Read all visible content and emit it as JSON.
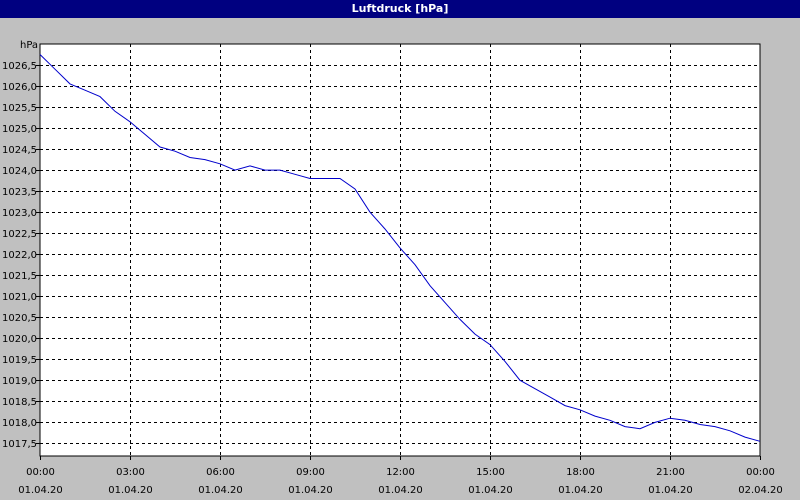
{
  "window": {
    "title": "Luftdruck [hPa]"
  },
  "chart_data": {
    "type": "line",
    "title": "Luftdruck [hPa]",
    "ylabel": "hPa",
    "xlabel": "",
    "ylim": [
      1017.2,
      1027.0
    ],
    "xlim": [
      0,
      24
    ],
    "grid": true,
    "legend": "none",
    "line_color": "#0000cc",
    "ytick_values": [
      1017.5,
      1018.0,
      1018.5,
      1019.0,
      1019.5,
      1020.0,
      1020.5,
      1021.0,
      1021.5,
      1022.0,
      1022.5,
      1023.0,
      1023.5,
      1024.0,
      1024.5,
      1025.0,
      1025.5,
      1026.0,
      1026.5
    ],
    "ytick_labels": [
      "1017,5",
      "1018,0",
      "1018,5",
      "1019,0",
      "1019,5",
      "1020,0",
      "1020,5",
      "1021,0",
      "1021,5",
      "1022,0",
      "1022,5",
      "1023,0",
      "1023,5",
      "1024,0",
      "1024,5",
      "1025,0",
      "1025,5",
      "1026,0",
      "1026,5"
    ],
    "xticks": [
      {
        "hour": 0,
        "time": "00:00",
        "date": "01.04.20"
      },
      {
        "hour": 3,
        "time": "03:00",
        "date": "01.04.20"
      },
      {
        "hour": 6,
        "time": "06:00",
        "date": "01.04.20"
      },
      {
        "hour": 9,
        "time": "09:00",
        "date": "01.04.20"
      },
      {
        "hour": 12,
        "time": "12:00",
        "date": "01.04.20"
      },
      {
        "hour": 15,
        "time": "15:00",
        "date": "01.04.20"
      },
      {
        "hour": 18,
        "time": "18:00",
        "date": "01.04.20"
      },
      {
        "hour": 21,
        "time": "21:00",
        "date": "01.04.20"
      },
      {
        "hour": 24,
        "time": "00:00",
        "date": "02.04.20"
      }
    ],
    "series": [
      {
        "x": [
          0,
          0.5,
          1.0,
          1.5,
          2.0,
          2.5,
          3.0,
          3.5,
          4.0,
          4.5,
          5.0,
          5.5,
          6.0,
          6.5,
          7.0,
          7.5,
          8.0,
          8.5,
          9.0,
          9.5,
          10.0,
          10.5,
          11.0,
          11.5,
          12.0,
          12.5,
          13.0,
          13.5,
          14.0,
          14.5,
          15.0,
          15.5,
          16.0,
          16.5,
          17.0,
          17.5,
          18.0,
          18.5,
          19.0,
          19.5,
          20.0,
          20.5,
          21.0,
          21.5,
          22.0,
          22.5,
          23.0,
          23.5,
          24.0
        ],
        "values": [
          1026.75,
          1026.4,
          1026.05,
          1025.9,
          1025.75,
          1025.4,
          1025.15,
          1024.85,
          1024.55,
          1024.45,
          1024.3,
          1024.25,
          1024.15,
          1024.0,
          1024.1,
          1024.0,
          1024.0,
          1023.9,
          1023.8,
          1023.8,
          1023.8,
          1023.55,
          1023.0,
          1022.6,
          1022.15,
          1021.75,
          1021.25,
          1020.85,
          1020.45,
          1020.1,
          1019.85,
          1019.45,
          1019.0,
          1018.8,
          1018.6,
          1018.4,
          1018.3,
          1018.15,
          1018.05,
          1017.9,
          1017.85,
          1018.0,
          1018.1,
          1018.05,
          1017.95,
          1017.9,
          1017.8,
          1017.65,
          1017.55
        ]
      }
    ]
  }
}
